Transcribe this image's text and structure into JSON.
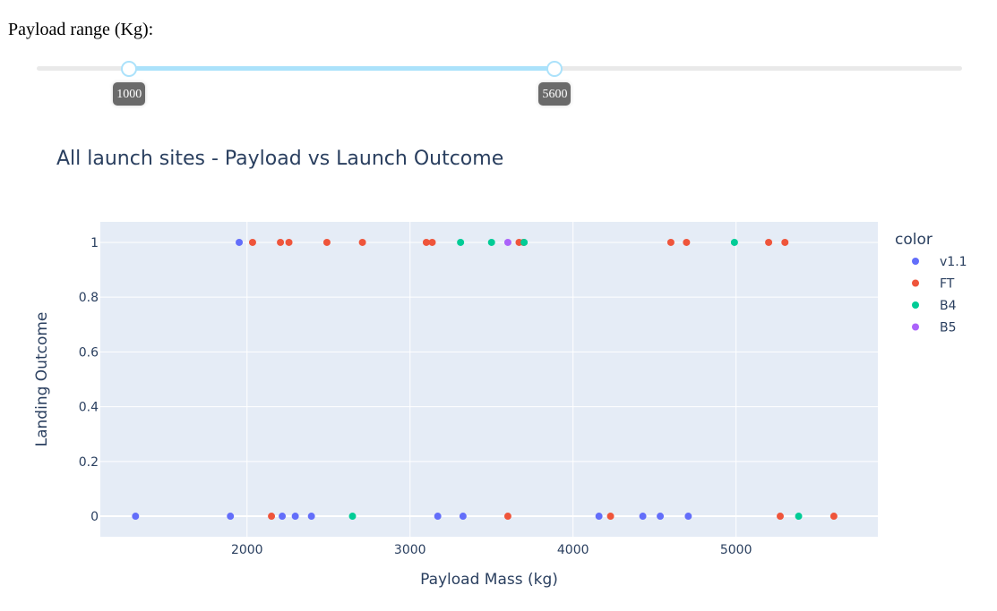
{
  "slider": {
    "label": "Payload range (Kg):",
    "min": 0,
    "max": 10000,
    "low": 1000,
    "high": 5600,
    "low_label": "1000",
    "high_label": "5600"
  },
  "colors": {
    "v1.1": "#636efa",
    "FT": "#ef553b",
    "B4": "#00cc96",
    "B5": "#ab63fa",
    "plot_bg": "#e5ecf6",
    "grid": "#ffffff",
    "text": "#2a3f5f",
    "slider_track": "#abe2fb"
  },
  "chart_data": {
    "type": "scatter",
    "title": "All launch sites - Payload vs Launch Outcome",
    "xlabel": "Payload Mass (kg)",
    "ylabel": "Landing Outcome",
    "xlim": [
      1100,
      5870
    ],
    "ylim": [
      -0.075,
      1.075
    ],
    "xticks": [
      2000,
      3000,
      4000,
      5000
    ],
    "yticks": [
      0,
      0.2,
      0.4,
      0.6,
      0.8,
      1
    ],
    "ytick_labels": [
      "0",
      "0.2",
      "0.4",
      "0.6",
      "0.8",
      "1"
    ],
    "grid": true,
    "legend": {
      "title": "color",
      "placement": "right"
    },
    "series": [
      {
        "name": "v1.1",
        "points": [
          [
            1952,
            1
          ],
          [
            1316,
            0
          ],
          [
            1898,
            0
          ],
          [
            2216,
            0
          ],
          [
            2296,
            0
          ],
          [
            2395,
            0
          ],
          [
            3170,
            0
          ],
          [
            3325,
            0
          ],
          [
            4159,
            0
          ],
          [
            4428,
            0
          ],
          [
            4535,
            0
          ],
          [
            4707,
            0
          ]
        ]
      },
      {
        "name": "FT",
        "points": [
          [
            2034,
            1
          ],
          [
            2205,
            1
          ],
          [
            2257,
            1
          ],
          [
            2490,
            1
          ],
          [
            2708,
            1
          ],
          [
            3100,
            1
          ],
          [
            3136,
            1
          ],
          [
            3669,
            1
          ],
          [
            3696,
            1
          ],
          [
            4600,
            1
          ],
          [
            4696,
            1
          ],
          [
            5200,
            1
          ],
          [
            5300,
            1
          ],
          [
            2150,
            0
          ],
          [
            3600,
            0
          ],
          [
            4230,
            0
          ],
          [
            5271,
            0
          ],
          [
            5600,
            0
          ]
        ]
      },
      {
        "name": "B4",
        "points": [
          [
            3310,
            1
          ],
          [
            3500,
            1
          ],
          [
            3700,
            1
          ],
          [
            4990,
            1
          ],
          [
            2647,
            0
          ],
          [
            5384,
            0
          ]
        ]
      },
      {
        "name": "B5",
        "points": [
          [
            3600,
            1
          ]
        ]
      }
    ]
  }
}
